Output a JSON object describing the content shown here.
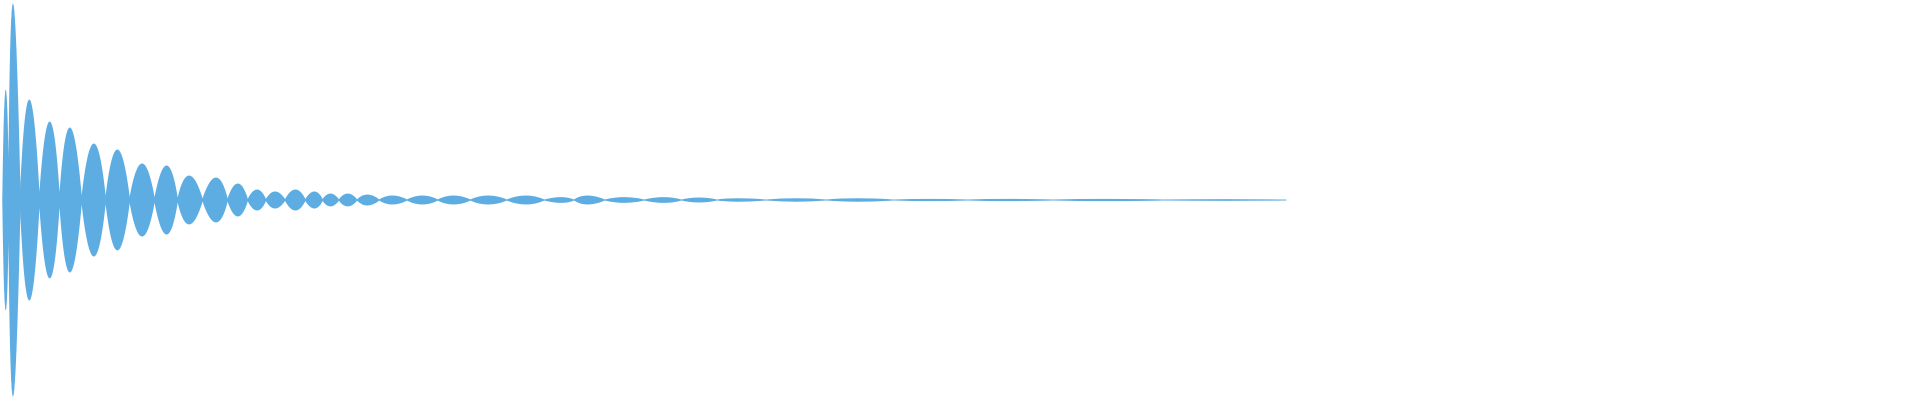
{
  "chart_data": {
    "type": "waveform",
    "color": "#5dade2",
    "x": [
      0.003,
      0.006,
      0.015,
      0.026,
      0.036,
      0.049,
      0.061,
      0.074,
      0.087,
      0.098,
      0.113,
      0.124,
      0.134,
      0.143,
      0.154,
      0.164,
      0.172,
      0.181,
      0.191,
      0.204,
      0.22,
      0.236,
      0.254,
      0.274,
      0.293,
      0.305,
      0.325,
      0.346,
      0.364,
      0.383,
      0.415,
      0.446,
      0.485,
      0.523,
      0.574,
      0.638
    ],
    "values": [
      0.55,
      0.98,
      0.5,
      0.39,
      0.36,
      0.28,
      0.25,
      0.18,
      0.17,
      0.12,
      0.11,
      0.08,
      0.05,
      0.04,
      0.05,
      0.04,
      0.03,
      0.03,
      0.025,
      0.02,
      0.02,
      0.02,
      0.02,
      0.02,
      0.012,
      0.02,
      0.012,
      0.012,
      0.01,
      0.006,
      0.006,
      0.006,
      0.003,
      0.003,
      0.003,
      0.002
    ],
    "xlim": [
      0,
      1
    ],
    "ylim": [
      -1,
      1
    ]
  }
}
